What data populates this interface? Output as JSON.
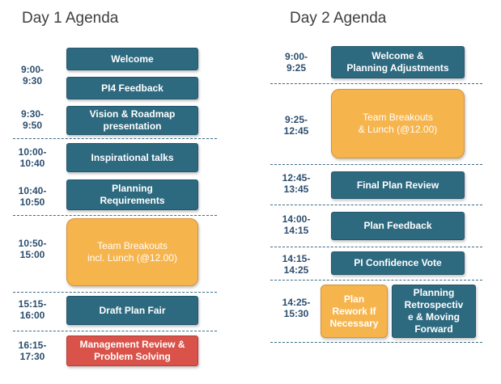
{
  "day1": {
    "title": "Day 1 Agenda",
    "times": [
      "9:00-\n9:30",
      "9:30-\n9:50",
      "10:00-\n10:40",
      "10:40-\n10:50",
      "10:50-\n15:00",
      "15:15-\n16:00",
      "16:15-\n17:30"
    ],
    "sessions": [
      "Welcome",
      "PI4 Feedback",
      "Vision & Roadmap\npresentation",
      "Inspirational talks",
      "Planning\nRequirements",
      "Team Breakouts\nincl. Lunch (@12.00)",
      "Draft Plan Fair",
      "Management Review &\nProblem Solving"
    ]
  },
  "day2": {
    "title": "Day 2 Agenda",
    "times": [
      "9:00-\n9:25",
      "9:25-\n12:45",
      "12:45-\n13:45",
      "14:00-\n14:15",
      "14:15-\n14:25",
      "14:25-\n15:30"
    ],
    "sessions": [
      "Welcome &\nPlanning Adjustments",
      "Team Breakouts\n& Lunch (@12.00)",
      "Final Plan Review",
      "Plan Feedback",
      "PI Confidence Vote",
      "Plan\nRework If\nNecessary",
      "Planning\nRetrospectiv\ne & Moving\nForward"
    ]
  },
  "colors": {
    "teal": "#2d6a80",
    "orange": "#f6b44c",
    "red": "#d9534a",
    "time_text": "#2c4e6e",
    "divider": "#3b6c86"
  }
}
